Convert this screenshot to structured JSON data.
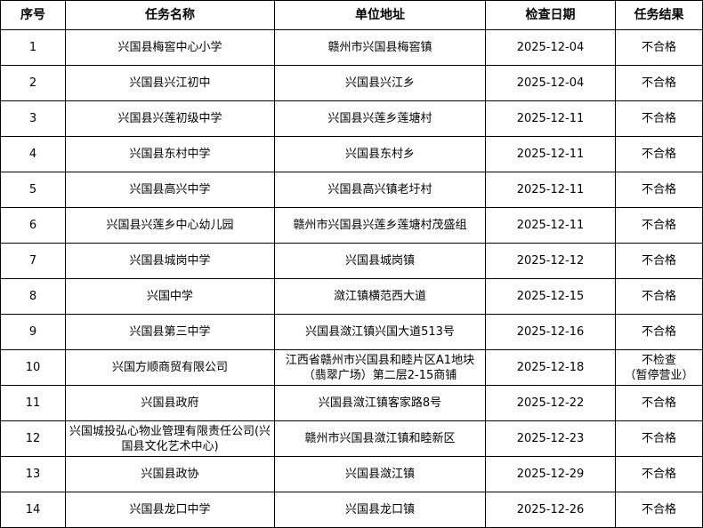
{
  "table": {
    "headers": [
      "序号",
      "任务名称",
      "单位地址",
      "检查日期",
      "任务结果"
    ],
    "rows": [
      [
        "1",
        "兴国县梅窖中心小学",
        "赣州市兴国县梅窖镇",
        "2025-12-04",
        "不合格"
      ],
      [
        "2",
        "兴国县兴江初中",
        "兴国县兴江乡",
        "2025-12-04",
        "不合格"
      ],
      [
        "3",
        "兴国县兴莲初级中学",
        "兴国县兴莲乡莲塘村",
        "2025-12-11",
        "不合格"
      ],
      [
        "4",
        "兴国县东村中学",
        "兴国县东村乡",
        "2025-12-11",
        "不合格"
      ],
      [
        "5",
        "兴国县高兴中学",
        "兴国县高兴镇老圩村",
        "2025-12-11",
        "不合格"
      ],
      [
        "6",
        "兴国县兴莲乡中心幼儿园",
        "赣州市兴国县兴莲乡莲塘村茂盛组",
        "2025-12-11",
        "不合格"
      ],
      [
        "7",
        "兴国县城岗中学",
        "兴国县城岗镇",
        "2025-12-12",
        "不合格"
      ],
      [
        "8",
        "兴国中学",
        "潋江镇横范西大道",
        "2025-12-15",
        "不合格"
      ],
      [
        "9",
        "兴国县第三中学",
        "兴国县潋江镇兴国大道513号",
        "2025-12-16",
        "不合格"
      ],
      [
        "10",
        "兴国方顺商贸有限公司",
        "江西省赣州市兴国县和睦片区A1地块（翡翠广场）第二层2-15商铺",
        "2025-12-18",
        "不检查\n（暂停营业）"
      ],
      [
        "11",
        "兴国县政府",
        "兴国县潋江镇客家路8号",
        "2025-12-22",
        "不合格"
      ],
      [
        "12",
        "兴国城投弘心物业管理有限责任公司(兴国县文化艺术中心)",
        "赣州市兴国县潋江镇和睦新区",
        "2025-12-23",
        "不合格"
      ],
      [
        "13",
        "兴国县政协",
        "兴国县潋江镇",
        "2025-12-29",
        "不合格"
      ],
      [
        "14",
        "兴国县龙口中学",
        "兴国县龙口镇",
        "2025-12-26",
        "不合格"
      ]
    ]
  }
}
